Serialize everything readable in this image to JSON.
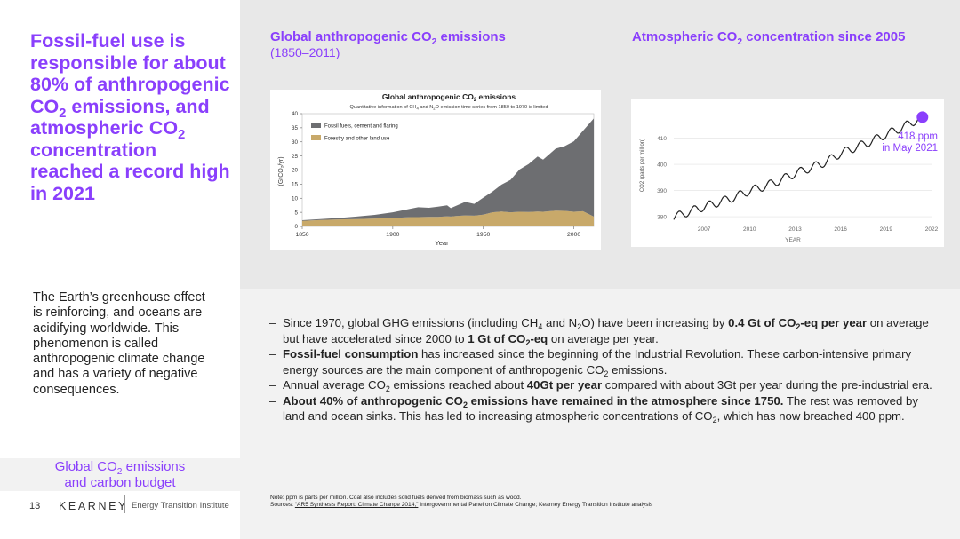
{
  "headline": {
    "p1": "Fossil-fuel use is responsible for about 80% of anthropogenic CO",
    "sub1": "2",
    "p2": " emissions, and atmospheric CO",
    "sub2": "2",
    "p3": " concentration reached a record high in 2021"
  },
  "intro": "The Earth’s greenhouse effect is reinforcing, and oceans are acidifying worldwide. This phenomenon is called anthropogenic climate change and has a variety of negative consequences.",
  "nav_link": {
    "p1": "Global CO",
    "sub": "2",
    "p2": " emissions",
    "line2": "and carbon budget"
  },
  "footer": {
    "page_number": "13",
    "logo": "KEARNEY",
    "institute": "Energy Transition Institute"
  },
  "chart1_header": {
    "p1": "Global anthropogenic CO",
    "sub": "2",
    "p2": " emissions",
    "subtitle": "(1850–2011)"
  },
  "chart2_header": {
    "p1": "Atmospheric CO",
    "sub": "2",
    "p2": " concentration since 2005"
  },
  "chart_data": [
    {
      "type": "area",
      "title_main": "Global anthropogenic CO",
      "title_sub": "2",
      "title_end": " emissions",
      "subtitle_p1": "Quantitative information of CH",
      "subtitle_sub1": "4",
      "subtitle_p2": " and N",
      "subtitle_sub2": "2",
      "subtitle_p3": "O emission time series from 1850 to 1970 is limited",
      "ylabel": "(GtCO₂/yr)",
      "xlabel": "Year",
      "xlim": [
        1850,
        2011
      ],
      "ylim": [
        0,
        40
      ],
      "xticks": [
        1850,
        1900,
        1950,
        2000
      ],
      "yticks": [
        0,
        5,
        10,
        15,
        20,
        25,
        30,
        35,
        40
      ],
      "legend": [
        "Fossil fuels, cement and flaring",
        "Forestry and other land use"
      ],
      "colors": {
        "fossil": "#6d6e71",
        "forestry": "#c8a96a"
      },
      "x": [
        1850,
        1860,
        1870,
        1880,
        1890,
        1900,
        1910,
        1914,
        1920,
        1925,
        1930,
        1932,
        1935,
        1940,
        1945,
        1950,
        1955,
        1960,
        1965,
        1970,
        1975,
        1980,
        1983,
        1990,
        1995,
        2000,
        2005,
        2011
      ],
      "series": [
        {
          "key": "forestry",
          "values": [
            2.0,
            2.3,
            2.5,
            2.6,
            2.8,
            3.0,
            3.3,
            3.3,
            3.4,
            3.4,
            3.6,
            3.5,
            3.7,
            3.9,
            3.8,
            4.2,
            5.0,
            5.3,
            5.0,
            5.2,
            5.1,
            5.3,
            5.2,
            5.6,
            5.5,
            5.2,
            5.4,
            3.5
          ]
        },
        {
          "key": "fossil",
          "values": [
            0.2,
            0.3,
            0.5,
            0.9,
            1.3,
            2.0,
            3.0,
            3.5,
            3.2,
            3.6,
            3.9,
            3.0,
            3.6,
            4.8,
            4.2,
            6.0,
            7.3,
            9.5,
            11.5,
            15.0,
            17.0,
            19.5,
            18.5,
            22.0,
            23.0,
            25.0,
            28.5,
            34.8
          ]
        }
      ]
    },
    {
      "type": "line",
      "ylabel": "CO2 (parts per million)",
      "xlabel": "YEAR",
      "xlim": [
        2005,
        2022
      ],
      "ylim": [
        378,
        420
      ],
      "xticks": [
        2007,
        2010,
        2013,
        2016,
        2019,
        2022
      ],
      "yticks": [
        380,
        390,
        400,
        410
      ],
      "annotation": {
        "line1": "418 ppm",
        "line2": "in May 2021"
      },
      "highlight_point": [
        2021.4,
        418
      ],
      "accent": "#8a3ffc",
      "x": [
        2005,
        2006,
        2007,
        2008,
        2009,
        2010,
        2011,
        2012,
        2013,
        2014,
        2015,
        2016,
        2017,
        2018,
        2019,
        2020,
        2021.4
      ],
      "values": [
        379.8,
        381.9,
        383.8,
        385.6,
        387.4,
        389.9,
        391.6,
        393.9,
        396.5,
        398.6,
        400.8,
        404.2,
        406.5,
        408.7,
        411.4,
        413.9,
        418.0
      ]
    }
  ],
  "bullets": [
    {
      "segments": [
        {
          "t": "Since 1970, global GHG emissions (including CH"
        },
        {
          "t": "4",
          "sub": true
        },
        {
          "t": " and N"
        },
        {
          "t": "2",
          "sub": true
        },
        {
          "t": "O) have been increasing by "
        },
        {
          "t": "0.4 Gt of CO",
          "b": true
        },
        {
          "t": "2",
          "sub": true,
          "b": true
        },
        {
          "t": "-eq per year",
          "b": true
        },
        {
          "t": " on average but have accelerated since 2000 to "
        },
        {
          "t": "1 Gt of CO",
          "b": true
        },
        {
          "t": "2",
          "sub": true,
          "b": true
        },
        {
          "t": "-eq",
          "b": true
        },
        {
          "t": " on average per year."
        }
      ]
    },
    {
      "segments": [
        {
          "t": "Fossil-fuel consumption",
          "b": true
        },
        {
          "t": " has increased since the beginning of the Industrial Revolution. These carbon-intensive primary energy sources are the main component of anthropogenic CO"
        },
        {
          "t": "2",
          "sub": true
        },
        {
          "t": " emissions."
        }
      ]
    },
    {
      "segments": [
        {
          "t": "Annual average CO"
        },
        {
          "t": "2",
          "sub": true
        },
        {
          "t": " emissions reached about "
        },
        {
          "t": "40Gt per year",
          "b": true
        },
        {
          "t": " compared with about 3Gt per year during the pre-industrial era."
        }
      ]
    },
    {
      "segments": [
        {
          "t": "About 40% of anthropogenic CO",
          "b": true
        },
        {
          "t": "2",
          "sub": true,
          "b": true
        },
        {
          "t": " emissions have remained in the atmosphere since 1750.",
          "b": true
        },
        {
          "t": " The rest was removed by land and ocean sinks. This has led to increasing atmospheric concentrations of CO"
        },
        {
          "t": "2",
          "sub": true
        },
        {
          "t": ", which has now breached 400 ppm."
        }
      ]
    }
  ],
  "note": {
    "line1": "Note: ppm is parts per million. Coal also includes solid fuels derived from biomass such as wood.",
    "sources_prefix": "Sources: ",
    "sources_link": "“AR5 Synthesis Report: Climate Change 2014,”",
    "sources_rest": " Intergovernmental Panel on Climate Change; Kearney Energy Transition Institute analysis"
  }
}
